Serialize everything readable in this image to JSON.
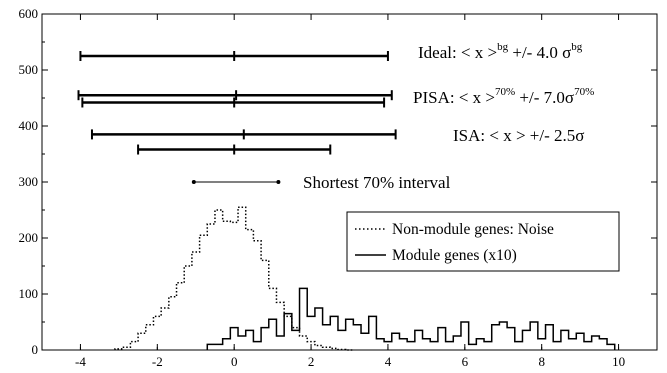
{
  "chart_data": {
    "type": "line",
    "title": "",
    "xlabel": "",
    "ylabel": "",
    "xlim": [
      -5,
      11
    ],
    "ylim": [
      0,
      600
    ],
    "xticks": [
      -4,
      -2,
      0,
      2,
      4,
      6,
      8,
      10
    ],
    "yticks": [
      0,
      100,
      200,
      300,
      400,
      500,
      600
    ],
    "x_tick_labels": [
      "-4",
      "-2",
      "0",
      "2",
      "4",
      "6",
      "8",
      "10"
    ],
    "y_tick_labels": [
      "0",
      "100",
      "200",
      "300",
      "400",
      "500",
      "600"
    ],
    "grid": false,
    "legend_position": "right",
    "legend": [
      {
        "label": "Non-module genes: Noise",
        "style": "dotted"
      },
      {
        "label": "Module genes (x10)",
        "style": "solid"
      }
    ],
    "intervals": [
      {
        "group": "Ideal",
        "y": 525,
        "lo": -4.0,
        "mid": 0.0,
        "hi": 4.0,
        "caps": true
      },
      {
        "group": "PISA",
        "y": 455,
        "lo": -4.05,
        "mid": 0.05,
        "hi": 4.1,
        "caps": true
      },
      {
        "group": "PISA",
        "y": 442,
        "lo": -3.95,
        "mid": 0.0,
        "hi": 3.9,
        "caps": true
      },
      {
        "group": "ISA",
        "y": 385,
        "lo": -3.7,
        "mid": 0.25,
        "hi": 4.2,
        "caps": true
      },
      {
        "group": "ISA",
        "y": 358,
        "lo": -2.5,
        "mid": 0.0,
        "hi": 2.5,
        "caps": true
      },
      {
        "group": "Shortest",
        "y": 300,
        "lo": -1.05,
        "hi": 1.15,
        "caps": false
      }
    ],
    "annotations": {
      "ideal": {
        "pre": "Ideal: < x >",
        "sup1": "bg",
        "mid": " +/- 4.0 σ",
        "sup2": "bg"
      },
      "pisa": {
        "pre": "PISA: < x >",
        "sup1": "70%",
        "mid": " +/- 7.0σ",
        "sup2": "70%"
      },
      "isa": "ISA: < x > +/- 2.5σ",
      "shortest": "Shortest 70% interval"
    },
    "series": [
      {
        "name": "Non-module genes: Noise",
        "style": "dotted",
        "x": [
          -3.0,
          -2.8,
          -2.6,
          -2.4,
          -2.2,
          -2.0,
          -1.8,
          -1.6,
          -1.4,
          -1.2,
          -1.0,
          -0.8,
          -0.6,
          -0.4,
          -0.2,
          0.0,
          0.2,
          0.4,
          0.6,
          0.8,
          1.0,
          1.2,
          1.4,
          1.6,
          1.8,
          2.0,
          2.2,
          2.4,
          2.6,
          2.8,
          3.0
        ],
        "y": [
          2,
          5,
          15,
          30,
          45,
          60,
          75,
          95,
          120,
          150,
          175,
          205,
          225,
          250,
          230,
          228,
          255,
          215,
          195,
          160,
          110,
          85,
          60,
          40,
          25,
          15,
          8,
          5,
          3,
          1,
          0
        ]
      },
      {
        "name": "Module genes (x10)",
        "style": "solid",
        "x": [
          -0.6,
          -0.4,
          -0.2,
          0.0,
          0.2,
          0.4,
          0.6,
          0.8,
          1.0,
          1.2,
          1.4,
          1.6,
          1.8,
          2.0,
          2.2,
          2.4,
          2.6,
          2.8,
          3.0,
          3.2,
          3.4,
          3.6,
          3.8,
          4.0,
          4.2,
          4.4,
          4.6,
          4.8,
          5.0,
          5.2,
          5.4,
          5.6,
          5.8,
          6.0,
          6.2,
          6.4,
          6.6,
          6.8,
          7.0,
          7.2,
          7.4,
          7.6,
          7.8,
          8.0,
          8.2,
          8.4,
          8.6,
          8.8,
          9.0,
          9.2,
          9.4,
          9.6,
          9.8
        ],
        "y": [
          10,
          10,
          20,
          40,
          25,
          35,
          15,
          40,
          55,
          25,
          65,
          35,
          110,
          60,
          75,
          45,
          60,
          35,
          55,
          45,
          30,
          60,
          20,
          15,
          30,
          20,
          15,
          35,
          20,
          15,
          40,
          15,
          25,
          50,
          10,
          20,
          15,
          45,
          50,
          40,
          15,
          35,
          50,
          20,
          45,
          15,
          35,
          20,
          30,
          15,
          25,
          20,
          10
        ]
      }
    ]
  }
}
